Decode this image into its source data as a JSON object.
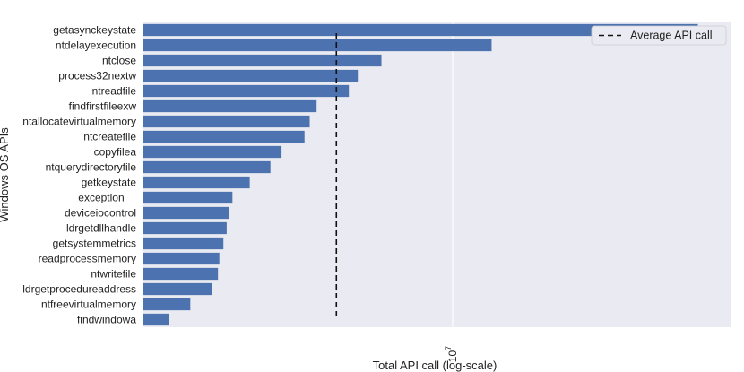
{
  "chart_data": {
    "type": "bar",
    "orientation": "horizontal",
    "xscale": "log",
    "xlabel": "Total API call (log-scale)",
    "ylabel": "Windows OS APIs",
    "xlim": [
      1500000,
      55000000
    ],
    "xticks": [
      {
        "value": 10000000,
        "base": "10",
        "exp": "7"
      }
    ],
    "grid": true,
    "legend": {
      "label": "Average API call",
      "position": "top-right",
      "style": "dashed"
    },
    "average": 4900000,
    "categories": [
      "findwindowa",
      "ntfreevirtualmemory",
      "ldrgetprocedureaddress",
      "ntwritefile",
      "readprocessmemory",
      "getsystemmetrics",
      "ldrgetdllhandle",
      "deviceiocontrol",
      "__exception__",
      "getkeystate",
      "ntquerydirectoryfile",
      "copyfilea",
      "ntcreatefile",
      "ntallocatevirtualmemory",
      "findfirstfileexw",
      "ntreadfile",
      "process32nextw",
      "ntclose",
      "ntdelayexecution",
      "getasynckeystate"
    ],
    "values": [
      1750000,
      2000000,
      2280000,
      2370000,
      2390000,
      2450000,
      2500000,
      2530000,
      2590000,
      2880000,
      3270000,
      3500000,
      4030000,
      4160000,
      4340000,
      5290000,
      5590000,
      6460000,
      12700000,
      45000000
    ],
    "colors": {
      "bar": "#4c72b0",
      "background": "#eaeaf2",
      "grid": "#ffffff",
      "average_line": "#111111"
    }
  }
}
